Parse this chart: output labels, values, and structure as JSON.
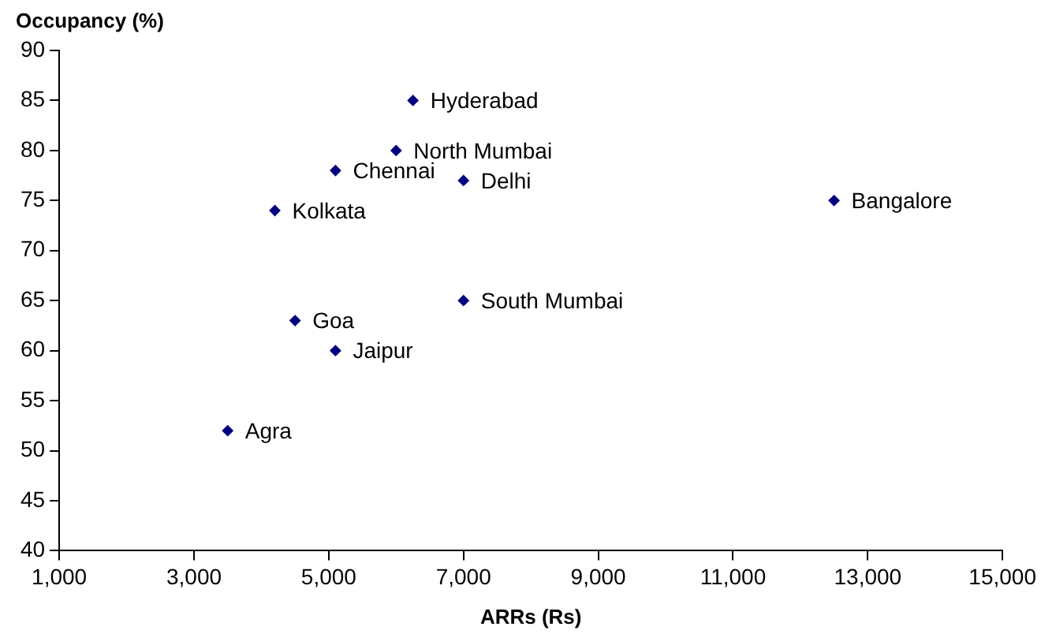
{
  "chart_data": {
    "type": "scatter",
    "xlabel": "ARRs (Rs)",
    "ylabel": "Occupancy (%)",
    "x": [
      6250,
      6000,
      5100,
      7000,
      4200,
      12500,
      7000,
      4500,
      5100,
      3500
    ],
    "values": [
      85,
      80,
      78,
      77,
      74,
      75,
      65,
      63,
      60,
      52
    ],
    "color": "#000080",
    "marker": "diamond",
    "grid": false,
    "legend": false,
    "xlim": [
      1000,
      15000
    ],
    "xticks": [
      {
        "value": 1000,
        "label": "1,000"
      },
      {
        "value": 3000,
        "label": "3,000"
      },
      {
        "value": 5000,
        "label": "5,000"
      },
      {
        "value": 7000,
        "label": "7,000"
      },
      {
        "value": 9000,
        "label": "9,000"
      },
      {
        "value": 11000,
        "label": "11,000"
      },
      {
        "value": 13000,
        "label": "13,000"
      },
      {
        "value": 15000,
        "label": "15,000"
      }
    ],
    "ylim": [
      40,
      90
    ],
    "yticks": [
      40,
      45,
      50,
      55,
      60,
      65,
      70,
      75,
      80,
      85,
      90
    ],
    "annotations": [
      {
        "text": "Hyderabad",
        "x": 6250,
        "y": 85
      },
      {
        "text": "North Mumbai",
        "x": 6000,
        "y": 80
      },
      {
        "text": "Chennai",
        "x": 5100,
        "y": 78
      },
      {
        "text": "Delhi",
        "x": 7000,
        "y": 77
      },
      {
        "text": "Kolkata",
        "x": 4200,
        "y": 74
      },
      {
        "text": "Bangalore",
        "x": 12500,
        "y": 75
      },
      {
        "text": "South Mumbai",
        "x": 7000,
        "y": 65
      },
      {
        "text": "Goa",
        "x": 4500,
        "y": 63
      },
      {
        "text": "Jaipur",
        "x": 5100,
        "y": 60
      },
      {
        "text": "Agra",
        "x": 3500,
        "y": 52
      }
    ]
  }
}
